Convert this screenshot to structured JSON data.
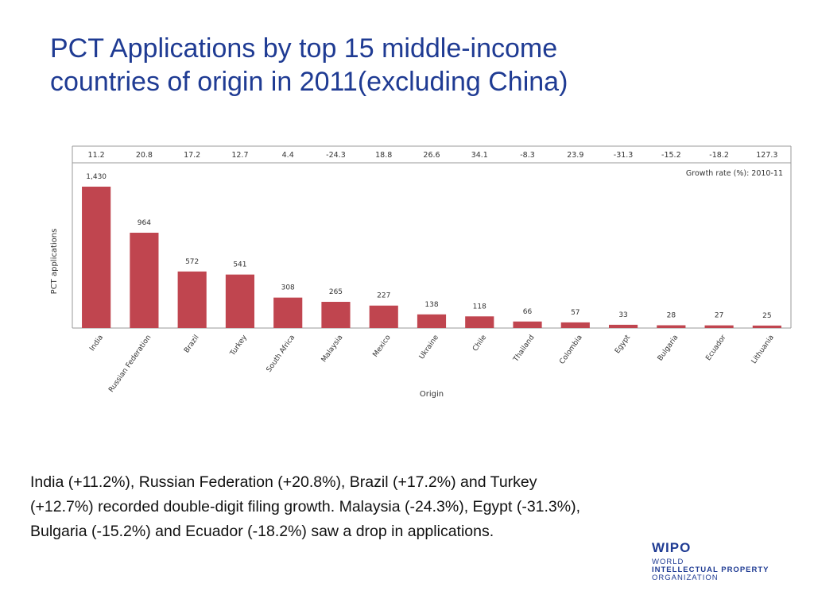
{
  "slide": {
    "title_lines": [
      "PCT Applications by top 15 middle-income",
      "countries of origin in 2011(excluding China)"
    ],
    "caption_lines": [
      "India (+11.2%), Russian Federation (+20.8%), Brazil (+17.2%) and Turkey",
      "(+12.7%) recorded double-digit filing growth.  Malaysia (-24.3%), Egypt (-31.3%),",
      "Bulgaria (-15.2%) and Ecuador (-18.2%) saw a drop in applications."
    ]
  },
  "logo": {
    "mark": "WIPO",
    "line1": "WORLD",
    "line2": "INTELLECTUAL PROPERTY",
    "line3": "ORGANIZATION"
  },
  "colors": {
    "title": "#1f3b93",
    "bar": "#c0454f",
    "text": "#111111",
    "axis": "#9a9a9a"
  },
  "chart_data": {
    "type": "bar",
    "categories": [
      "India",
      "Russian Federation",
      "Brazil",
      "Turkey",
      "South Africa",
      "Malaysia",
      "Mexico",
      "Ukraine",
      "Chile",
      "Thailand",
      "Colombia",
      "Egypt",
      "Bulgaria",
      "Ecuador",
      "Lithuania"
    ],
    "values": [
      1430,
      964,
      572,
      541,
      308,
      265,
      227,
      138,
      118,
      66,
      57,
      33,
      28,
      27,
      25
    ],
    "data_labels": [
      "1,430",
      "964",
      "572",
      "541",
      "308",
      "265",
      "227",
      "138",
      "118",
      "66",
      "57",
      "33",
      "28",
      "27",
      "25"
    ],
    "growth_rates": [
      "11.2",
      "20.8",
      "17.2",
      "12.7",
      "4.4",
      "-24.3",
      "18.8",
      "26.6",
      "34.1",
      "-8.3",
      "23.9",
      "-31.3",
      "-15.2",
      "-18.2",
      "127.3"
    ],
    "growth_label": "Growth rate (%): 2010-11",
    "xlabel": "Origin",
    "ylabel": "PCT applications",
    "ylim": [
      0,
      1430
    ],
    "grid": false
  }
}
